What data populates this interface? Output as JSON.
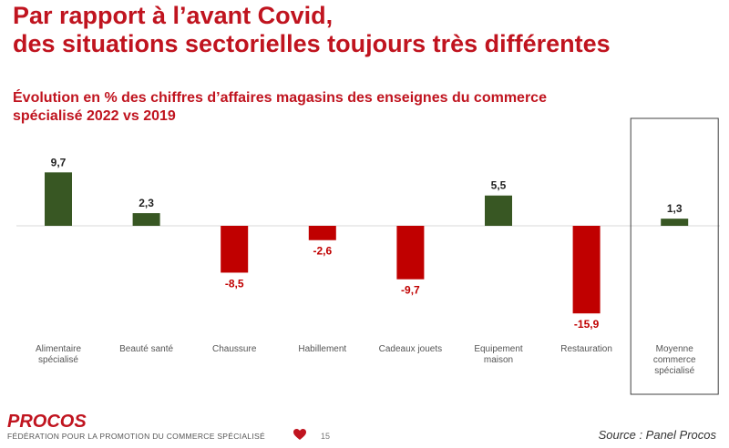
{
  "slide": {
    "title_lines": [
      "Par rapport à l’avant Covid,",
      "des situations sectorielles toujours très différentes"
    ],
    "page_number": "15"
  },
  "chart_data": {
    "type": "bar",
    "title_lines": [
      "Évolution en % des chiffres d’affaires magasins des enseignes du commerce",
      "spécialisé 2022 vs 2019"
    ],
    "categories": [
      [
        "Alimentaire",
        "spécialisé"
      ],
      [
        "Beauté santé"
      ],
      [
        "Chaussure"
      ],
      [
        "Habillement"
      ],
      [
        "Cadeaux jouets"
      ],
      [
        "Equipement",
        "maison"
      ],
      [
        "Restauration"
      ],
      [
        "Moyenne",
        "commerce",
        "spécialisé"
      ]
    ],
    "values": [
      9.7,
      2.3,
      -8.5,
      -2.6,
      -9.7,
      5.5,
      -15.9,
      1.3
    ],
    "value_labels": [
      "9,7",
      "2,3",
      "-8,5",
      "-2,6",
      "-9,7",
      "5,5",
      "-15,9",
      "1,3"
    ],
    "highlighted_category": "Moyenne commerce spécialisé",
    "colors": {
      "positive": "#385723",
      "negative": "#c00000",
      "axis": "#d9d9d9",
      "highlight_box": "#404040"
    },
    "grid": false,
    "legend": false
  },
  "footer": {
    "logo": "PROCOS",
    "organization": "FÉDÉRATION POUR LA PROMOTION DU COMMERCE SPÉCIALISÉ",
    "source": "Source : Panel Procos",
    "heart_icon_color": "#c0141f"
  }
}
